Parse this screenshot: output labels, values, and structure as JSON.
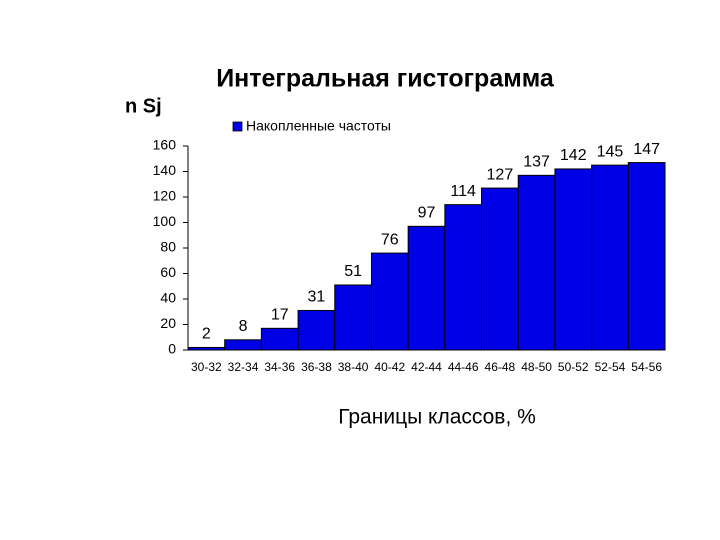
{
  "chart_data": {
    "type": "bar",
    "title": "Интегральная гистограмма",
    "y_label": "n Sj",
    "x_label": "Границы классов, %",
    "categories": [
      "30-32",
      "32-34",
      "34-36",
      "36-38",
      "38-40",
      "40-42",
      "42-44",
      "44-46",
      "46-48",
      "48-50",
      "50-52",
      "52-54",
      "54-56"
    ],
    "series": [
      {
        "name": "Накопленные частоты",
        "color": "#0000e6",
        "values": [
          2,
          8,
          17,
          31,
          51,
          76,
          97,
          114,
          127,
          137,
          142,
          145,
          147
        ]
      }
    ],
    "ylim": [
      0,
      160
    ],
    "yticks": [
      0,
      20,
      40,
      60,
      80,
      100,
      120,
      140,
      160
    ]
  }
}
